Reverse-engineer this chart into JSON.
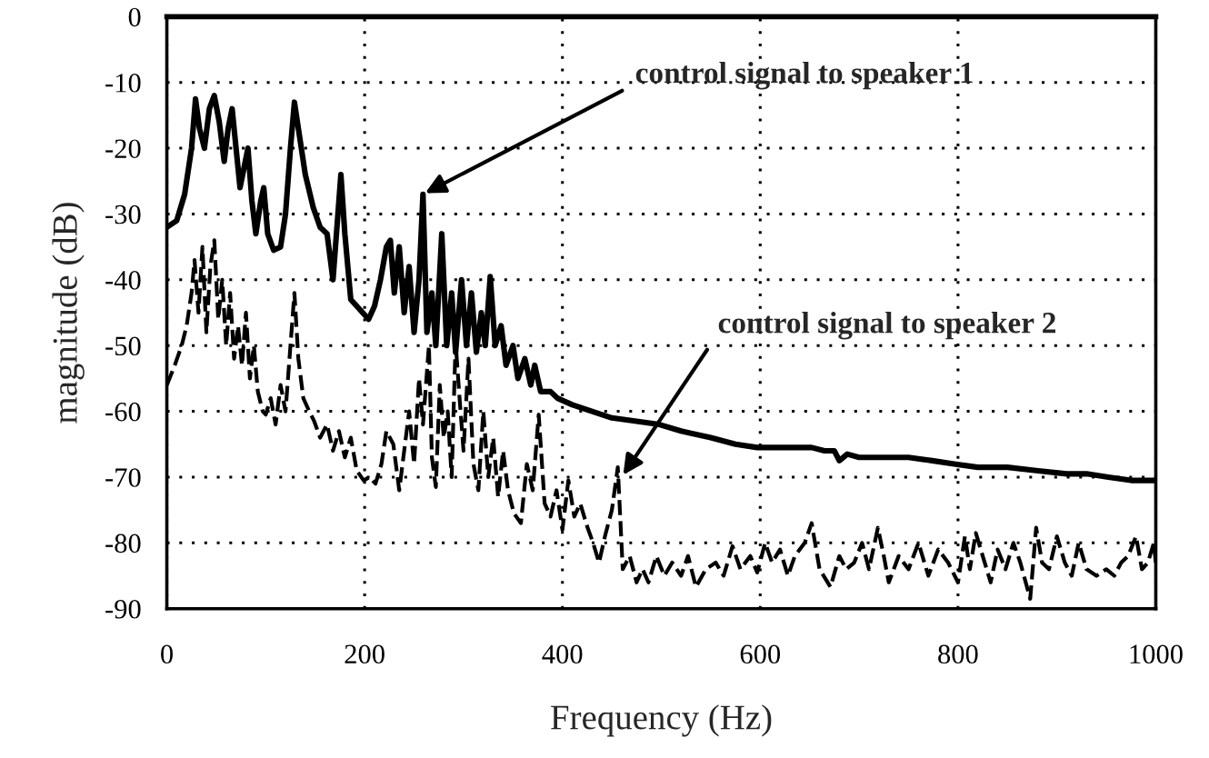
{
  "chart_data": {
    "type": "line",
    "xlabel": "Frequency (Hz)",
    "ylabel": "magnitude (dB)",
    "xlim": [
      0,
      1000
    ],
    "ylim": [
      -90,
      0
    ],
    "xticks": [
      0,
      200,
      400,
      600,
      800,
      1000
    ],
    "yticks": [
      -90,
      -80,
      -70,
      -60,
      -50,
      -40,
      -30,
      -20,
      -10,
      0
    ],
    "grid": true,
    "series": [
      {
        "color": "#000000",
        "line_style": "solid",
        "x": [
          0,
          10,
          18,
          25,
          29,
          33,
          38,
          43,
          48,
          53,
          58,
          62,
          66,
          70,
          74,
          78,
          82,
          86,
          90,
          95,
          98,
          102,
          108,
          115,
          120,
          125,
          129,
          134,
          140,
          148,
          155,
          162,
          168,
          172,
          176,
          180,
          186,
          192,
          198,
          204,
          210,
          216,
          222,
          226,
          230,
          235,
          240,
          245,
          250,
          255,
          259,
          263,
          268,
          272,
          278,
          283,
          288,
          292,
          298,
          303,
          308,
          313,
          318,
          322,
          327,
          332,
          338,
          343,
          350,
          355,
          362,
          368,
          372,
          378,
          388,
          395,
          410,
          430,
          450,
          475,
          498,
          520,
          550,
          575,
          597,
          625,
          652,
          665,
          675,
          680,
          688,
          700,
          720,
          750,
          774,
          796,
          820,
          850,
          879,
          910,
          930,
          952,
          975,
          1000
        ],
        "values": [
          -32,
          -31,
          -27,
          -20,
          -12.5,
          -17,
          -20,
          -14,
          -12,
          -16,
          -22,
          -17,
          -14,
          -20,
          -26,
          -23,
          -20,
          -28,
          -33,
          -28,
          -26,
          -33,
          -35.5,
          -35,
          -30,
          -20,
          -13,
          -18,
          -24,
          -29,
          -32,
          -33,
          -40,
          -32,
          -24,
          -33,
          -43,
          -44,
          -45,
          -46,
          -44,
          -40,
          -35,
          -34,
          -42,
          -35,
          -45,
          -38,
          -48,
          -40,
          -27,
          -48,
          -42,
          -50,
          -33,
          -50,
          -42,
          -51,
          -40,
          -50,
          -42,
          -51,
          -45,
          -50,
          -39.5,
          -50,
          -47,
          -53,
          -50,
          -55,
          -52,
          -56,
          -53,
          -57,
          -57,
          -58,
          -59,
          -60,
          -61,
          -61.5,
          -62,
          -63,
          -64,
          -65,
          -65.5,
          -65.5,
          -65.5,
          -66,
          -66,
          -67.5,
          -66.5,
          -67,
          -67,
          -67,
          -67.5,
          -68,
          -68.5,
          -68.5,
          -69,
          -69.5,
          -69.5,
          -70,
          -70.5,
          -70.5
        ]
      },
      {
        "color": "#000000",
        "line_style": "dashed",
        "x": [
          0,
          8,
          15,
          20,
          25,
          28,
          32,
          36,
          40,
          44,
          48,
          52,
          56,
          60,
          64,
          68,
          72,
          76,
          80,
          84,
          88,
          92,
          97,
          100,
          105,
          110,
          115,
          120,
          125,
          129,
          133,
          138,
          144,
          149,
          155,
          162,
          168,
          174,
          180,
          186,
          192,
          199,
          205,
          211,
          217,
          222,
          229,
          235,
          240,
          245,
          250,
          255,
          259,
          265,
          268,
          272,
          276,
          280,
          284,
          288,
          292,
          296,
          300,
          305,
          310,
          315,
          320,
          325,
          330,
          335,
          340,
          345,
          351,
          358,
          364,
          370,
          376,
          382,
          388,
          394,
          400,
          406,
          412,
          418,
          425,
          431,
          437,
          443,
          450,
          456,
          461,
          468,
          475,
          481,
          487,
          495,
          503,
          511,
          520,
          527,
          535,
          545,
          555,
          563,
          572,
          580,
          590,
          597,
          605,
          612,
          620,
          628,
          635,
          645,
          652,
          660,
          671,
          680,
          687,
          695,
          703,
          710,
          719,
          725,
          730,
          740,
          750,
          760,
          770,
          780,
          790,
          800,
          807,
          812,
          818,
          825,
          833,
          840,
          848,
          856,
          863,
          873,
          879,
          885,
          892,
          900,
          908,
          915,
          922,
          930,
          940,
          950,
          958,
          965,
          972,
          980,
          986,
          992,
          998,
          1000
        ],
        "values": [
          -56,
          -53,
          -50,
          -47,
          -42,
          -37,
          -45,
          -35,
          -48,
          -38,
          -34,
          -46,
          -40,
          -50,
          -42,
          -52,
          -47,
          -53,
          -45,
          -55,
          -50,
          -57,
          -60,
          -60.5,
          -58,
          -62,
          -56,
          -60,
          -50,
          -42,
          -52,
          -58,
          -60,
          -61.5,
          -64,
          -62,
          -66,
          -63,
          -67,
          -64,
          -69,
          -70.5,
          -70,
          -71,
          -68,
          -63,
          -65,
          -72,
          -66,
          -60,
          -68,
          -55,
          -62,
          -50,
          -67,
          -71.5,
          -56,
          -64,
          -60,
          -70,
          -49.5,
          -58,
          -66,
          -52,
          -68,
          -72,
          -60,
          -70,
          -64,
          -73,
          -66,
          -72,
          -75.5,
          -77,
          -68,
          -72,
          -60.5,
          -74,
          -76,
          -72,
          -78,
          -70.5,
          -76,
          -74,
          -77.5,
          -80,
          -83,
          -79,
          -75,
          -68.5,
          -84,
          -82,
          -86,
          -84,
          -86,
          -82,
          -85,
          -83,
          -85,
          -82,
          -86.7,
          -84,
          -83,
          -85,
          -80.5,
          -84,
          -82,
          -84.5,
          -80,
          -83,
          -81,
          -85,
          -82,
          -80,
          -77,
          -84,
          -86.7,
          -82,
          -84,
          -83,
          -80,
          -84,
          -77.7,
          -82,
          -86,
          -82,
          -84,
          -80,
          -85,
          -81,
          -83,
          -86,
          -79,
          -84,
          -78.5,
          -82,
          -86,
          -81,
          -84,
          -80,
          -83,
          -88.5,
          -77.7,
          -83,
          -84,
          -79,
          -83,
          -85,
          -80,
          -84,
          -85,
          -84,
          -85,
          -83,
          -82,
          -79,
          -84,
          -83,
          -80,
          -83
        ]
      }
    ],
    "annotations": [
      {
        "text": "control signal to speaker 1",
        "x": 259,
        "y": -27
      },
      {
        "text": "control signal to speaker 2",
        "x": 460,
        "y": -70
      }
    ]
  }
}
